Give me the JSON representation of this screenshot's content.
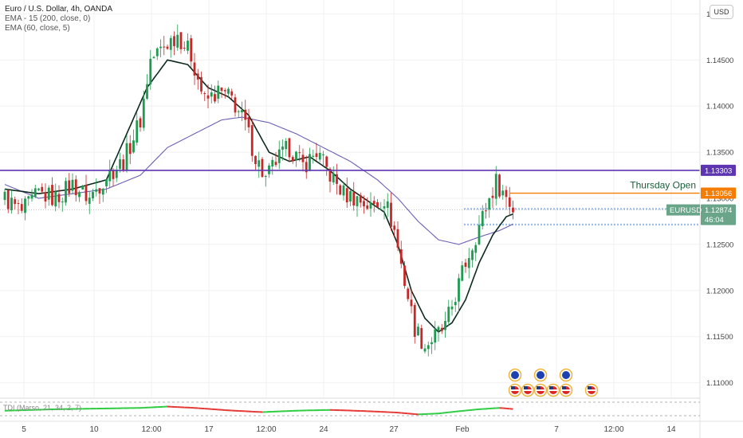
{
  "legend": {
    "title": "Euro / U.S. Dollar, 4h, OANDA",
    "ema1": "EMA - 15 (200, close, 0)",
    "ema2": "EMA (60, close, 5)"
  },
  "currency_button": "USD",
  "indicator_label": "TDI (Marso, 21, 34, 2, 7)",
  "colors": {
    "up": "#26a69a",
    "down": "#ef5350",
    "up_body": "#1f9a50",
    "down_body": "#c62828",
    "ema_fast": "#0d2a1f",
    "ema_slow": "#6a5fb5",
    "resistance": "#5e35b1",
    "thursday": "#f57c00",
    "price_tag": "#6aa58a",
    "tdi_green": "#2ecc40",
    "tdi_red": "#e53935"
  },
  "chart_data": {
    "type": "candlestick",
    "symbol": "EURUSD",
    "timeframe": "4h",
    "y_range": [
      1.1085,
      1.1515
    ],
    "y_ticks": [
      "1.15000",
      "1.14500",
      "1.14000",
      "1.13500",
      "1.13000",
      "1.12500",
      "1.12000",
      "1.11500",
      "1.11000"
    ],
    "x_ticks": [
      "5",
      "10",
      "12:00",
      "17",
      "12:00",
      "24",
      "27",
      "Feb",
      "7",
      "12:00",
      "14"
    ],
    "resistance": {
      "value": 1.13303,
      "label": "1.13303"
    },
    "thursday_open": {
      "value": 1.13056,
      "label": "1.13056",
      "text": "Thursday Open"
    },
    "last_price": {
      "value": 1.12874,
      "label": "1.12874",
      "symbol": "EURUSD",
      "countdown": "46:04"
    },
    "zone_lines": [
      1.1289,
      1.1288,
      1.1272,
      1.1271
    ],
    "key_anchors": [
      [
        0,
        1.13
      ],
      [
        5,
        1.1285
      ],
      [
        10,
        1.1305
      ],
      [
        15,
        1.13
      ],
      [
        20,
        1.1315
      ],
      [
        25,
        1.13
      ],
      [
        30,
        1.1325
      ],
      [
        35,
        1.134
      ],
      [
        40,
        1.1385
      ],
      [
        43,
        1.145
      ],
      [
        47,
        1.1465
      ],
      [
        51,
        1.1478
      ],
      [
        55,
        1.1455
      ],
      [
        59,
        1.1405
      ],
      [
        63,
        1.1415
      ],
      [
        67,
        1.1408
      ],
      [
        71,
        1.138
      ],
      [
        74,
        1.1345
      ],
      [
        77,
        1.132
      ],
      [
        80,
        1.134
      ],
      [
        84,
        1.1355
      ],
      [
        88,
        1.1335
      ],
      [
        92,
        1.135
      ],
      [
        96,
        1.1325
      ],
      [
        100,
        1.1305
      ],
      [
        104,
        1.13
      ],
      [
        108,
        1.129
      ],
      [
        112,
        1.13
      ],
      [
        115,
        1.1265
      ],
      [
        118,
        1.121
      ],
      [
        121,
        1.116
      ],
      [
        124,
        1.114
      ],
      [
        127,
        1.115
      ],
      [
        130,
        1.116
      ],
      [
        133,
        1.1195
      ],
      [
        136,
        1.123
      ],
      [
        139,
        1.126
      ],
      [
        142,
        1.129
      ],
      [
        145,
        1.1318
      ],
      [
        148,
        1.1302
      ],
      [
        150,
        1.1288
      ]
    ],
    "ema_fast_anchors": [
      [
        0,
        1.131
      ],
      [
        10,
        1.1305
      ],
      [
        20,
        1.131
      ],
      [
        30,
        1.132
      ],
      [
        36,
        1.137
      ],
      [
        42,
        1.142
      ],
      [
        48,
        1.145
      ],
      [
        54,
        1.1445
      ],
      [
        60,
        1.142
      ],
      [
        66,
        1.141
      ],
      [
        72,
        1.139
      ],
      [
        78,
        1.135
      ],
      [
        84,
        1.134
      ],
      [
        90,
        1.1345
      ],
      [
        96,
        1.133
      ],
      [
        102,
        1.131
      ],
      [
        108,
        1.1295
      ],
      [
        112,
        1.1285
      ],
      [
        116,
        1.125
      ],
      [
        120,
        1.12
      ],
      [
        124,
        1.117
      ],
      [
        128,
        1.1155
      ],
      [
        132,
        1.1165
      ],
      [
        136,
        1.119
      ],
      [
        140,
        1.123
      ],
      [
        144,
        1.126
      ],
      [
        148,
        1.128
      ],
      [
        150,
        1.1283
      ]
    ],
    "ema_slow_anchors": [
      [
        0,
        1.1315
      ],
      [
        10,
        1.13
      ],
      [
        20,
        1.1305
      ],
      [
        30,
        1.131
      ],
      [
        40,
        1.1325
      ],
      [
        48,
        1.1355
      ],
      [
        56,
        1.137
      ],
      [
        64,
        1.1385
      ],
      [
        70,
        1.1388
      ],
      [
        78,
        1.1382
      ],
      [
        86,
        1.137
      ],
      [
        94,
        1.1355
      ],
      [
        102,
        1.134
      ],
      [
        110,
        1.132
      ],
      [
        116,
        1.13
      ],
      [
        122,
        1.1275
      ],
      [
        128,
        1.1255
      ],
      [
        134,
        1.125
      ],
      [
        140,
        1.1258
      ],
      [
        146,
        1.1265
      ],
      [
        150,
        1.1272
      ]
    ],
    "tdi_anchors": [
      [
        0,
        0.55
      ],
      [
        15,
        0.42
      ],
      [
        30,
        0.35
      ],
      [
        40,
        0.3
      ],
      [
        48,
        0.18
      ],
      [
        56,
        0.3
      ],
      [
        66,
        0.52
      ],
      [
        76,
        0.68
      ],
      [
        86,
        0.55
      ],
      [
        96,
        0.48
      ],
      [
        106,
        0.58
      ],
      [
        116,
        0.72
      ],
      [
        122,
        0.88
      ],
      [
        128,
        0.8
      ],
      [
        134,
        0.6
      ],
      [
        140,
        0.42
      ],
      [
        146,
        0.3
      ],
      [
        150,
        0.4
      ]
    ],
    "events": [
      {
        "row": 0,
        "slots": [
          1,
          3,
          5
        ]
      },
      {
        "row": 1,
        "slots": [
          1,
          2,
          3,
          4,
          5,
          7
        ]
      }
    ]
  }
}
